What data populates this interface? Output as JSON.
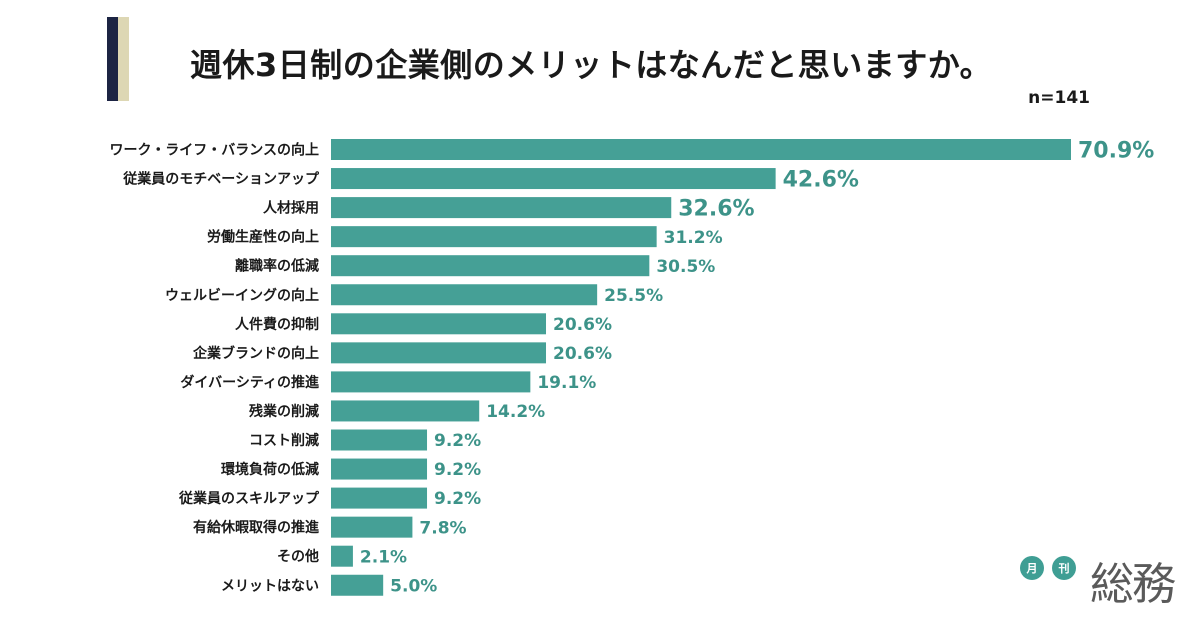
{
  "header": {
    "title": "週休3日制の企業側のメリットはなんだと思いますか。",
    "sample_size": "n=141"
  },
  "colors": {
    "bar": "#45a096",
    "value_text": "#3d9389",
    "accent_navy": "#1c2443",
    "accent_cream": "#ddd7b4"
  },
  "chart_data": {
    "type": "bar",
    "orientation": "horizontal",
    "categories": [
      "ワーク・ライフ・バランスの向上",
      "従業員のモチベーションアップ",
      "人材採用",
      "労働生産性の向上",
      "離職率の低減",
      "ウェルビーイングの向上",
      "人件費の抑制",
      "企業ブランドの向上",
      "ダイバーシティの推進",
      "残業の削減",
      "コスト削減",
      "環境負荷の低減",
      "従業員のスキルアップ",
      "有給休暇取得の推進",
      "その他",
      "メリットはない"
    ],
    "values": [
      70.9,
      42.6,
      32.6,
      31.2,
      30.5,
      25.5,
      20.6,
      20.6,
      19.1,
      14.2,
      9.2,
      9.2,
      9.2,
      7.8,
      2.1,
      5.0
    ],
    "value_labels": [
      "70.9%",
      "42.6%",
      "32.6%",
      "31.2%",
      "30.5%",
      "25.5%",
      "20.6%",
      "20.6%",
      "19.1%",
      "14.2%",
      "9.2%",
      "9.2%",
      "9.2%",
      "7.8%",
      "2.1%",
      "5.0%"
    ],
    "unit": "%",
    "xlim": [
      0,
      70.9
    ],
    "grid": false,
    "legend": "none"
  },
  "logo": {
    "circle_1": "月",
    "circle_2": "刊",
    "word": "総務"
  }
}
